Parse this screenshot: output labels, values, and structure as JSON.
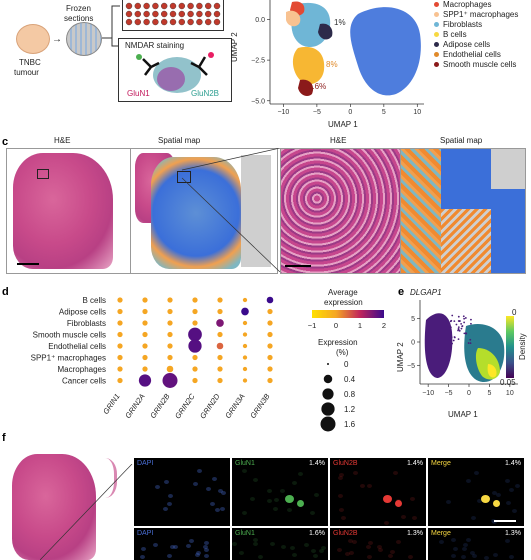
{
  "panels": {
    "a_fragment": {
      "tumour_label_line1": "TNBC",
      "tumour_label_line2": "tumour",
      "sections_label_line1": "Frozen",
      "sections_label_line2": "sections",
      "staining_title": "NMDAR staining",
      "glun1": "GluN1",
      "glun2b": "GluN2B"
    },
    "b_fragment": {
      "xlabel": "UMAP 1",
      "ylabel": "UMAP 2",
      "pct_1": "1%",
      "pct_8": "8%",
      "pct_06": "0.6%",
      "legend": [
        {
          "name": "Macrophages",
          "color": "#e34a33"
        },
        {
          "name": "SPP1⁺ macrophages",
          "color": "#f8c291"
        },
        {
          "name": "Fibroblasts",
          "color": "#6fb6d6"
        },
        {
          "name": "B cells",
          "color": "#f7d842"
        },
        {
          "name": "Adipose cells",
          "color": "#2d2a4a"
        },
        {
          "name": "Endothelial cells",
          "color": "#e08a2a"
        },
        {
          "name": "Smooth muscle cells",
          "color": "#8b1a1a"
        }
      ]
    },
    "c": {
      "label": "c",
      "he1": "H&E",
      "map1": "Spatial map",
      "he2": "H&E",
      "map2": "Spatial map"
    },
    "d": {
      "label": "d",
      "rows": [
        "B cells",
        "Adipose cells",
        "Fibroblasts",
        "Smooth muscle cells",
        "Endothelial cells",
        "SPP1⁺ macrophages",
        "Macrophages",
        "Cancer cells"
      ],
      "cols": [
        "GRIN1",
        "GRIN2A",
        "GRIN2B",
        "GRIN2C",
        "GRIN2D",
        "GRIN3A",
        "GRIN3B"
      ],
      "colorbar_title_line1": "Average",
      "colorbar_title_line2": "expression",
      "colorbar_ticks": [
        "−1",
        "0",
        "1",
        "2"
      ],
      "size_title_line1": "Expression",
      "size_title_line2": "(%)",
      "size_ticks": [
        "0",
        "0.4",
        "0.8",
        "1.2",
        "1.6"
      ]
    },
    "e": {
      "label": "e",
      "title": "DLGAP1",
      "xlabel": "UMAP 1",
      "ylabel": "UMAP 2",
      "colorbar_title": "Density",
      "colorbar_ticks": [
        "0",
        "0.05"
      ]
    },
    "f": {
      "label": "f",
      "row1": [
        {
          "channel": "DAPI",
          "pct": ""
        },
        {
          "channel": "GluN1",
          "pct": "1.4%"
        },
        {
          "channel": "GluN2B",
          "pct": "1.4%"
        },
        {
          "channel": "Merge",
          "pct": "1.4%"
        }
      ],
      "row2": [
        {
          "channel": "DAPI",
          "pct": ""
        },
        {
          "channel": "GluN1",
          "pct": "1.6%"
        },
        {
          "channel": "GluN2B",
          "pct": "1.3%"
        },
        {
          "channel": "Merge",
          "pct": "1.3%"
        }
      ]
    }
  },
  "chart_data": [
    {
      "type": "scatter",
      "panel": "b",
      "xlabel": "UMAP 1",
      "ylabel": "UMAP 2",
      "x_ticks": [
        -10,
        -5,
        0,
        5,
        10
      ],
      "y_ticks": [
        -5.0,
        -2.5,
        0
      ],
      "xlim": [
        -12,
        11
      ],
      "ylim": [
        -5.2,
        1.2
      ],
      "annotations": [
        "1%",
        "8%",
        "0.6%"
      ],
      "legend_placement": "right"
    },
    {
      "type": "scatter",
      "panel": "d",
      "title": "",
      "categories_y": [
        "B cells",
        "Adipose cells",
        "Fibroblasts",
        "Smooth muscle cells",
        "Endothelial cells",
        "SPP1⁺ macrophages",
        "Macrophages",
        "Cancer cells"
      ],
      "categories_x": [
        "GRIN1",
        "GRIN2A",
        "GRIN2B",
        "GRIN2C",
        "GRIN2D",
        "GRIN3A",
        "GRIN3B"
      ],
      "values": [
        [
          {
            "pct": 0.1,
            "avg": 0.0
          },
          {
            "pct": 0.1,
            "avg": 0.0
          },
          {
            "pct": 0.1,
            "avg": 0.0
          },
          {
            "pct": 0.1,
            "avg": 0.0
          },
          {
            "pct": 0.1,
            "avg": 0.0
          },
          {
            "pct": 0.05,
            "avg": 0.0
          },
          {
            "pct": 0.2,
            "avg": 2.0
          }
        ],
        [
          {
            "pct": 0.1,
            "avg": 0.0
          },
          {
            "pct": 0.1,
            "avg": 0.0
          },
          {
            "pct": 0.1,
            "avg": 0.0
          },
          {
            "pct": 0.1,
            "avg": 0.0
          },
          {
            "pct": 0.1,
            "avg": 0.0
          },
          {
            "pct": 0.3,
            "avg": 2.0
          },
          {
            "pct": 0.1,
            "avg": 0.0
          }
        ],
        [
          {
            "pct": 0.1,
            "avg": 0.0
          },
          {
            "pct": 0.1,
            "avg": 0.0
          },
          {
            "pct": 0.1,
            "avg": 0.0
          },
          {
            "pct": 0.1,
            "avg": 0.0
          },
          {
            "pct": 0.3,
            "avg": 1.5
          },
          {
            "pct": 0.05,
            "avg": 0.0
          },
          {
            "pct": 0.1,
            "avg": 0.0
          }
        ],
        [
          {
            "pct": 0.1,
            "avg": 0.0
          },
          {
            "pct": 0.1,
            "avg": 0.0
          },
          {
            "pct": 0.1,
            "avg": 0.0
          },
          {
            "pct": 1.3,
            "avg": 1.8
          },
          {
            "pct": 0.1,
            "avg": 0.0
          },
          {
            "pct": 0.05,
            "avg": 0.0
          },
          {
            "pct": 0.1,
            "avg": 0.0
          }
        ],
        [
          {
            "pct": 0.1,
            "avg": 0.0
          },
          {
            "pct": 0.1,
            "avg": 0.0
          },
          {
            "pct": 0.1,
            "avg": 0.0
          },
          {
            "pct": 1.2,
            "avg": 1.8
          },
          {
            "pct": 0.2,
            "avg": 0.5
          },
          {
            "pct": 0.05,
            "avg": 0.0
          },
          {
            "pct": 0.1,
            "avg": 0.0
          }
        ],
        [
          {
            "pct": 0.1,
            "avg": 0.0
          },
          {
            "pct": 0.1,
            "avg": 0.0
          },
          {
            "pct": 0.1,
            "avg": 0.0
          },
          {
            "pct": 0.1,
            "avg": 0.0
          },
          {
            "pct": 0.1,
            "avg": 0.0
          },
          {
            "pct": 0.05,
            "avg": 0.0
          },
          {
            "pct": 0.1,
            "avg": 0.0
          }
        ],
        [
          {
            "pct": 0.1,
            "avg": 0.0
          },
          {
            "pct": 0.1,
            "avg": 0.0
          },
          {
            "pct": 0.2,
            "avg": 0.0
          },
          {
            "pct": 0.1,
            "avg": 0.0
          },
          {
            "pct": 0.1,
            "avg": 0.0
          },
          {
            "pct": 0.05,
            "avg": 0.0
          },
          {
            "pct": 0.1,
            "avg": 0.0
          }
        ],
        [
          {
            "pct": 0.1,
            "avg": 0.0
          },
          {
            "pct": 1.0,
            "avg": 1.8
          },
          {
            "pct": 1.6,
            "avg": 1.7
          },
          {
            "pct": 0.1,
            "avg": 0.0
          },
          {
            "pct": 0.1,
            "avg": 0.0
          },
          {
            "pct": 0.05,
            "avg": 0.0
          },
          {
            "pct": 0.1,
            "avg": 0.0
          }
        ]
      ],
      "color_range": [
        -1,
        2
      ],
      "size_range": [
        0,
        1.6
      ]
    },
    {
      "type": "scatter",
      "panel": "e",
      "title": "DLGAP1",
      "xlabel": "UMAP 1",
      "ylabel": "UMAP 2",
      "x_ticks": [
        -10,
        -5,
        0,
        5,
        10
      ],
      "y_ticks": [
        -5,
        0,
        5
      ],
      "xlim": [
        -12,
        12
      ],
      "ylim": [
        -9,
        9
      ],
      "colorbar_range": [
        0,
        0.05
      ]
    }
  ]
}
